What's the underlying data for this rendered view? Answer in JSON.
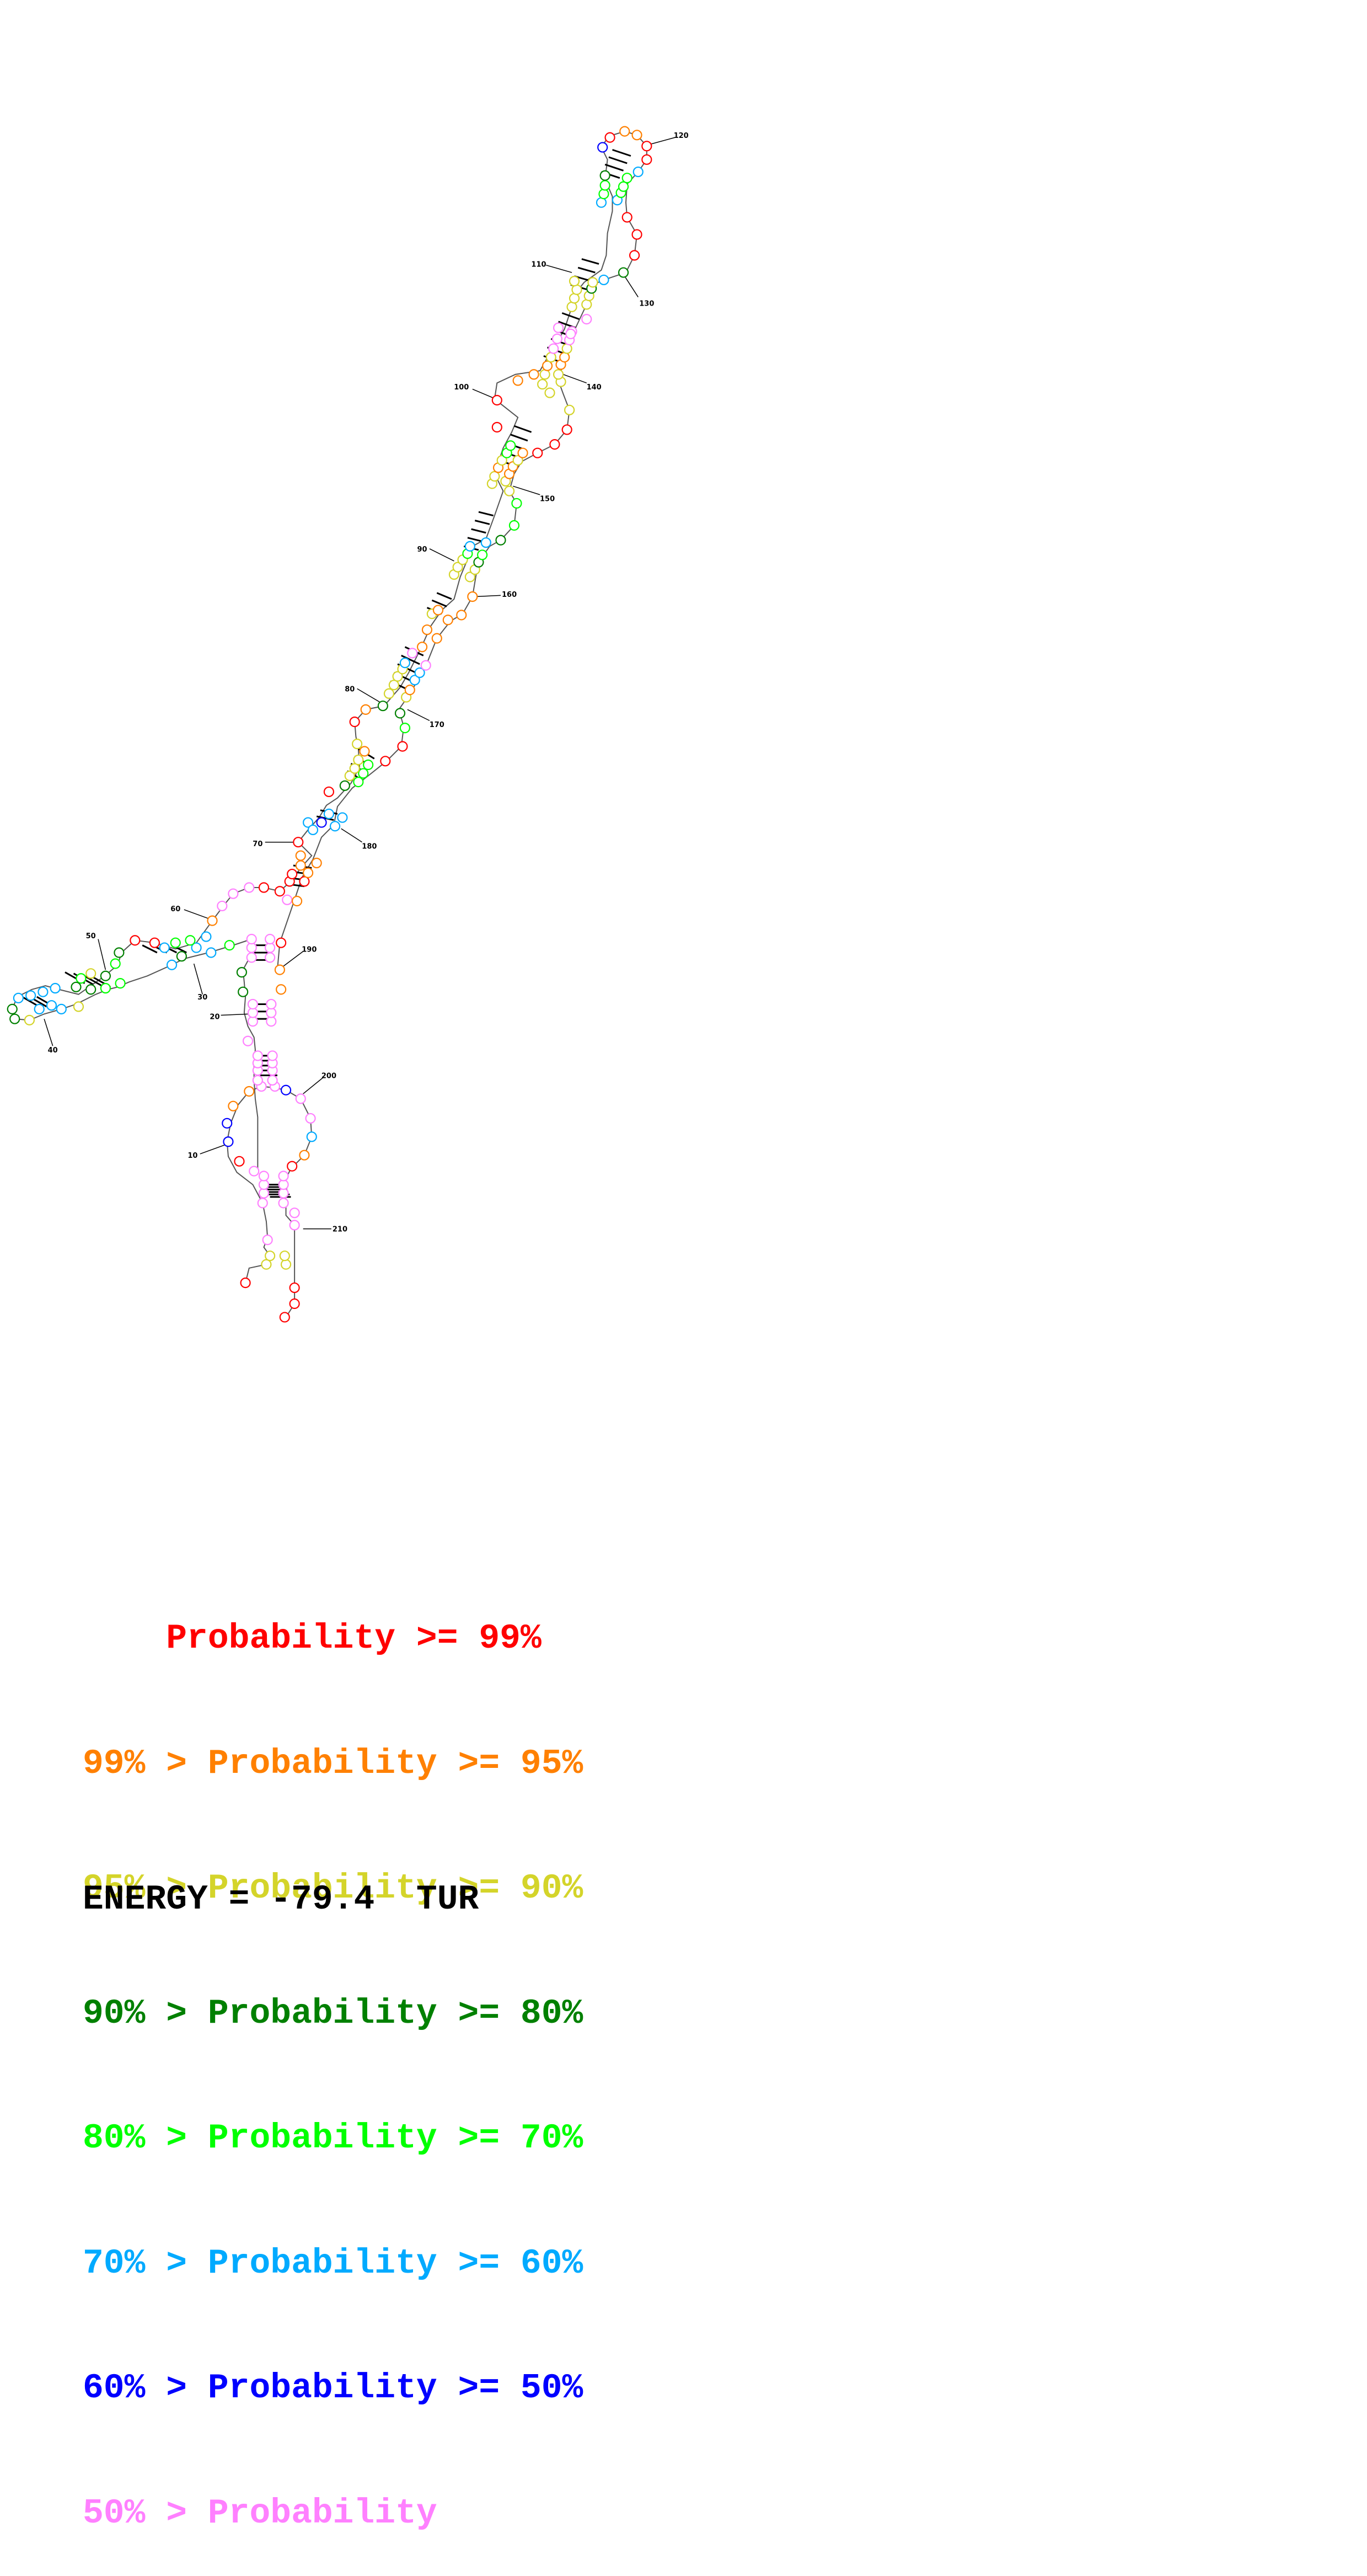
{
  "legend": {
    "rows": [
      {
        "prefix": "    ",
        "label": "Probability >= 99%",
        "color": "#ff0000"
      },
      {
        "prefix": "99% > ",
        "label": "Probability >= 95%",
        "color": "#ff8000"
      },
      {
        "prefix": "95% > ",
        "label": "Probability >= 90%",
        "color": "#d4d42a"
      },
      {
        "prefix": "90% > ",
        "label": "Probability >= 80%",
        "color": "#008000"
      },
      {
        "prefix": "80% > ",
        "label": "Probability >= 70%",
        "color": "#00ff00"
      },
      {
        "prefix": "70% > ",
        "label": "Probability >= 60%",
        "color": "#00aaff"
      },
      {
        "prefix": "60% > ",
        "label": "Probability >= 50%",
        "color": "#0000ff"
      },
      {
        "prefix": "50% > ",
        "label": "Probability",
        "color": "#ff80ff"
      }
    ]
  },
  "energy_text": "ENERGY = -79.4  TUR",
  "position_labels": [
    "10",
    "20",
    "30",
    "40",
    "50",
    "60",
    "70",
    "80",
    "90",
    "100",
    "110",
    "120",
    "130",
    "140",
    "150",
    "160",
    "170",
    "180",
    "190",
    "200",
    "210"
  ]
}
